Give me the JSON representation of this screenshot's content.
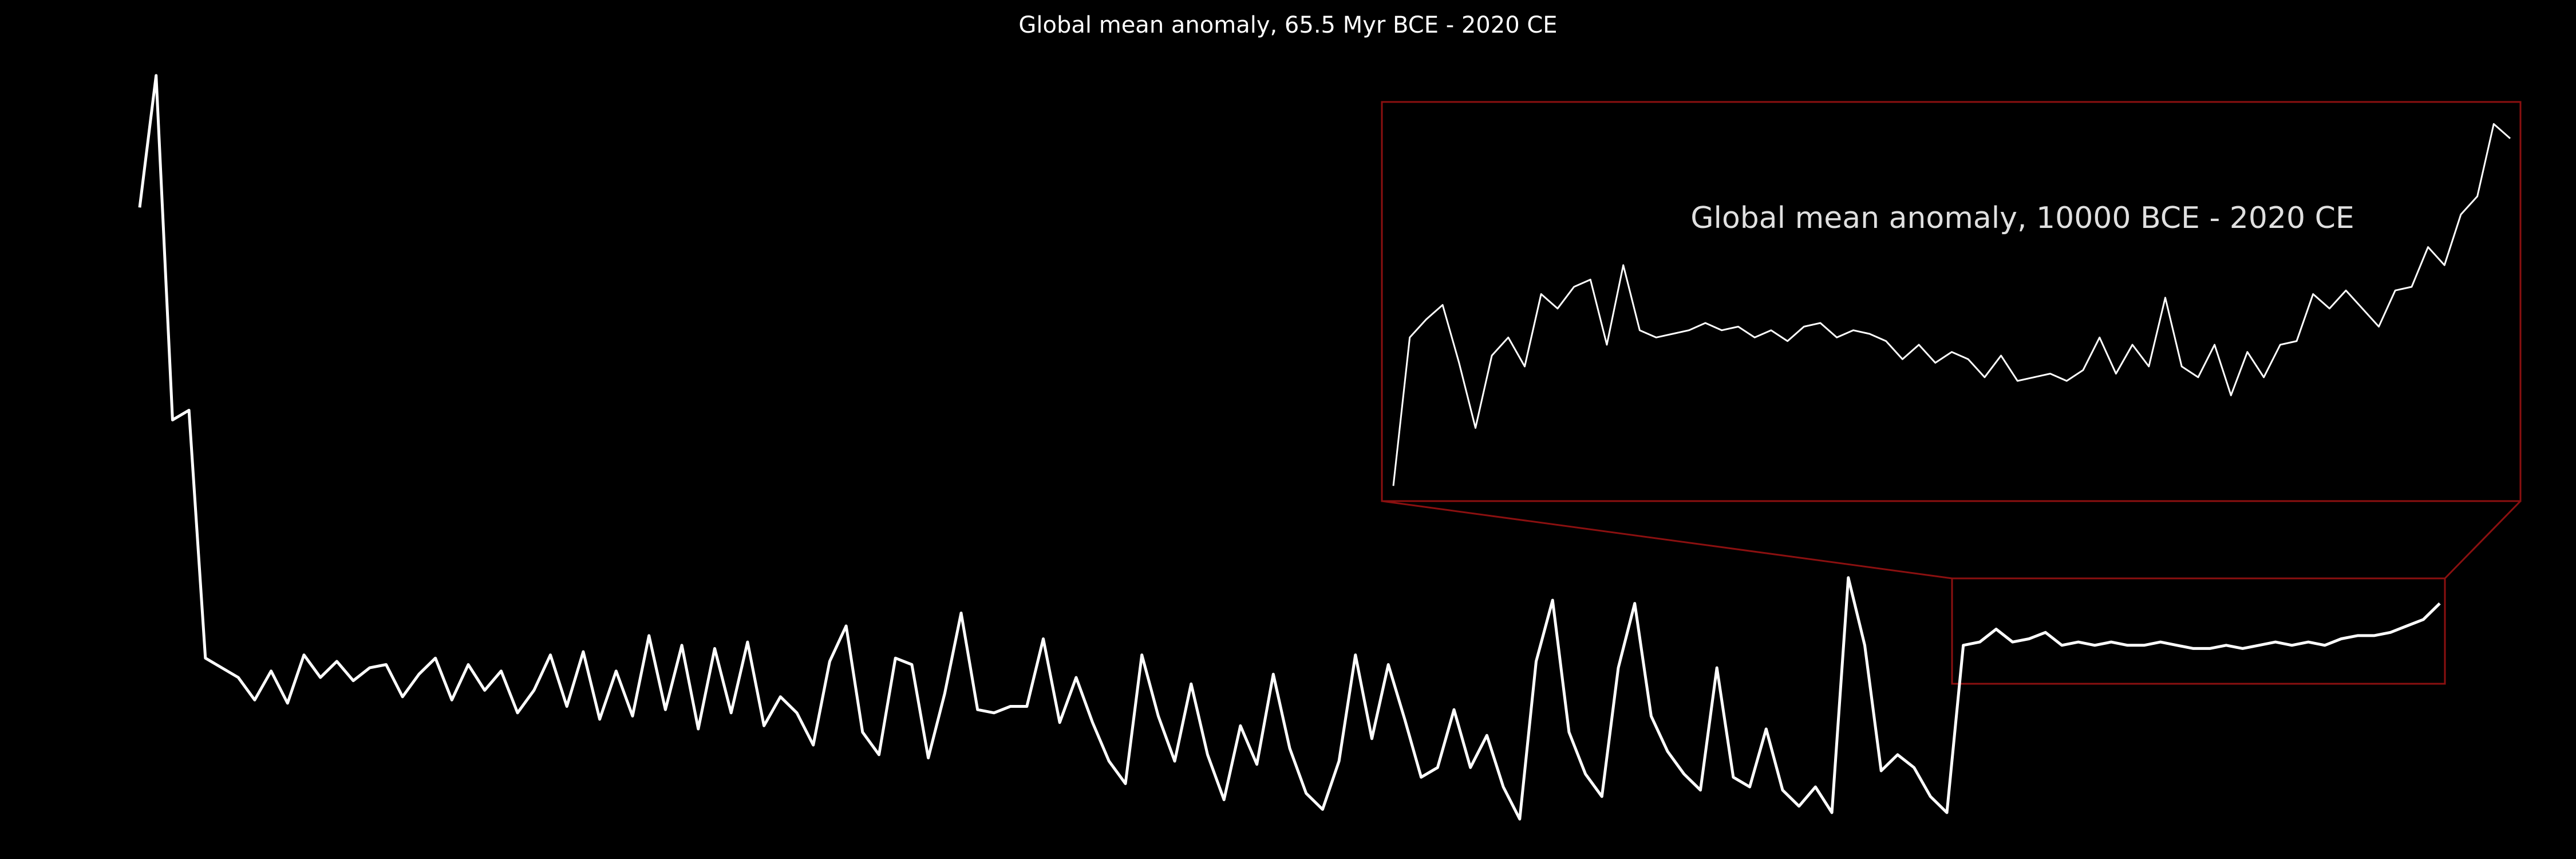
{
  "chart_data": [
    {
      "type": "line",
      "title": "Global mean anomaly, 65.5 Myr BCE - 2020 CE",
      "color": "#ffffff",
      "ylim": [
        0,
        24
      ],
      "values": [
        19.6,
        23.7,
        13,
        13.3,
        5.6,
        5.3,
        5,
        4.3,
        5.2,
        4.2,
        5.7,
        5,
        5.5,
        4.9,
        5.3,
        5.4,
        4.4,
        5.1,
        5.6,
        4.3,
        5.4,
        4.6,
        5.2,
        3.9,
        4.6,
        5.7,
        4.1,
        5.8,
        3.7,
        5.2,
        3.8,
        6.3,
        4,
        6,
        3.4,
        5.9,
        3.9,
        6.1,
        3.5,
        4.4,
        3.9,
        2.9,
        5.5,
        6.6,
        3.3,
        2.6,
        5.6,
        5.4,
        2.5,
        4.5,
        7,
        4,
        3.9,
        4.1,
        4.1,
        6.2,
        3.6,
        5,
        3.6,
        2.4,
        1.7,
        5.7,
        3.8,
        2.4,
        4.8,
        2.6,
        1.2,
        3.5,
        2.3,
        5.1,
        2.8,
        1.4,
        0.9,
        2.4,
        5.7,
        3.1,
        5.4,
        3.7,
        1.9,
        2.2,
        4,
        2.2,
        3.2,
        1.6,
        0.6,
        5.5,
        7.4,
        3.3,
        2,
        1.3,
        5.3,
        7.3,
        3.8,
        2.7,
        2,
        1.5,
        5.3,
        1.9,
        1.6,
        3.4,
        1.5,
        1,
        1.6,
        0.8,
        8.1,
        6,
        2.1,
        2.6,
        2.2,
        1.3,
        0.8,
        6,
        6.1,
        6.5,
        6.1,
        6.2,
        6.4,
        6,
        6.1,
        6,
        6.1,
        6,
        6,
        6.1,
        6,
        5.9,
        5.9,
        6,
        5.9,
        6,
        6.1,
        6,
        6.1,
        6,
        6.2,
        6.3,
        6.3,
        6.4,
        6.6,
        6.8,
        7.3
      ]
    },
    {
      "type": "line",
      "title": "Global mean anomaly, 10000 BCE - 2020 CE",
      "color": "#ffffff",
      "ylim": [
        0,
        11
      ],
      "values": [
        0.2,
        4.3,
        4.8,
        5.2,
        3.6,
        1.8,
        3.8,
        4.3,
        3.5,
        5.5,
        5.1,
        5.7,
        5.9,
        4.1,
        6.3,
        4.5,
        4.3,
        4.4,
        4.5,
        4.7,
        4.5,
        4.6,
        4.3,
        4.5,
        4.2,
        4.6,
        4.7,
        4.3,
        4.5,
        4.4,
        4.2,
        3.7,
        4.1,
        3.6,
        3.9,
        3.7,
        3.2,
        3.8,
        3.1,
        3.2,
        3.3,
        3.1,
        3.4,
        4.3,
        3.3,
        4.1,
        3.5,
        5.4,
        3.5,
        3.2,
        4.1,
        2.7,
        3.9,
        3.2,
        4.1,
        4.2,
        5.5,
        5.1,
        5.6,
        5.1,
        4.6,
        5.6,
        5.7,
        6.8,
        6.3,
        7.7,
        8.2,
        10.2,
        9.8
      ]
    }
  ]
}
